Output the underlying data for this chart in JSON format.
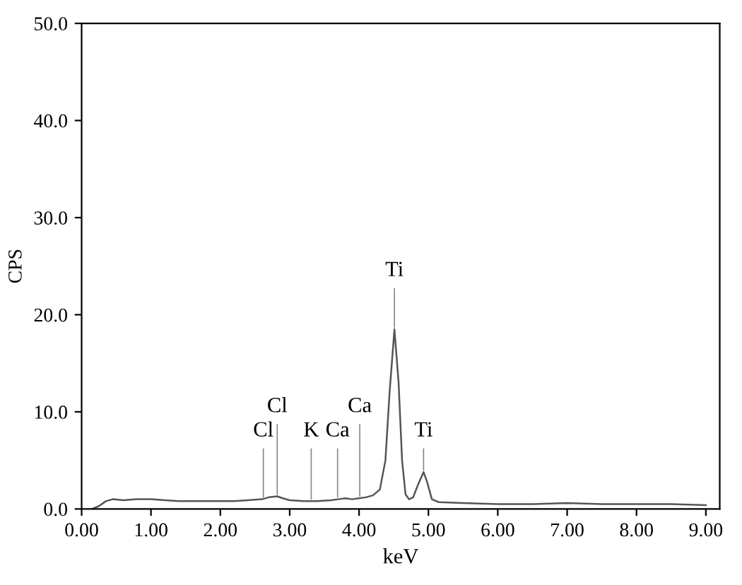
{
  "chart_data": {
    "type": "line",
    "xlabel": "keV",
    "ylabel": "CPS",
    "x": [
      0.15,
      0.25,
      0.35,
      0.45,
      0.6,
      0.8,
      1.0,
      1.2,
      1.4,
      1.6,
      1.8,
      2.0,
      2.2,
      2.4,
      2.6,
      2.7,
      2.82,
      2.9,
      3.0,
      3.2,
      3.4,
      3.6,
      3.7,
      3.8,
      3.9,
      4.0,
      4.1,
      4.2,
      4.3,
      4.38,
      4.44,
      4.51,
      4.57,
      4.62,
      4.67,
      4.72,
      4.78,
      4.85,
      4.93,
      4.98,
      5.05,
      5.15,
      5.5,
      6.0,
      6.5,
      7.0,
      7.5,
      8.0,
      8.5,
      9.0
    ],
    "series": [
      {
        "color": "#555555",
        "values": [
          0,
          0.3,
          0.8,
          1.0,
          0.9,
          1.0,
          1.0,
          0.9,
          0.8,
          0.8,
          0.8,
          0.8,
          0.8,
          0.9,
          1.0,
          1.2,
          1.3,
          1.1,
          0.9,
          0.8,
          0.8,
          0.9,
          1.0,
          1.1,
          1.0,
          1.1,
          1.2,
          1.4,
          2.0,
          5,
          12,
          18.5,
          13,
          5,
          1.5,
          1.0,
          1.2,
          2.5,
          3.8,
          2.8,
          1.0,
          0.7,
          0.6,
          0.5,
          0.5,
          0.6,
          0.5,
          0.5,
          0.5,
          0.4
        ]
      }
    ],
    "xlim": [
      0,
      9.2
    ],
    "ylim": [
      0,
      50
    ],
    "xticks": [
      {
        "value": 0,
        "label": "0.00"
      },
      {
        "value": 1,
        "label": "1.00"
      },
      {
        "value": 2,
        "label": "2.00"
      },
      {
        "value": 3,
        "label": "3.00"
      },
      {
        "value": 4,
        "label": "4.00"
      },
      {
        "value": 5,
        "label": "5.00"
      },
      {
        "value": 6,
        "label": "6.00"
      },
      {
        "value": 7,
        "label": "7.00"
      },
      {
        "value": 8,
        "label": "8.00"
      },
      {
        "value": 9,
        "label": "9.00"
      }
    ],
    "yticks": [
      {
        "value": 0,
        "label": "0.0"
      },
      {
        "value": 10,
        "label": "10.0"
      },
      {
        "value": 20,
        "label": "20.0"
      },
      {
        "value": 30,
        "label": "30.0"
      },
      {
        "value": 40,
        "label": "40.0"
      },
      {
        "value": 50,
        "label": "50.0"
      }
    ],
    "annotations": [
      {
        "text": "Cl",
        "x": 2.62,
        "y": 1.0
      },
      {
        "text": "Cl",
        "x": 2.82,
        "y": 1.3
      },
      {
        "text": "K",
        "x": 3.31,
        "y": 0.8
      },
      {
        "text": "Ca",
        "x": 3.69,
        "y": 1.0
      },
      {
        "text": "Ca",
        "x": 4.01,
        "y": 1.1
      },
      {
        "text": "Ti",
        "x": 4.51,
        "y": 18.5
      },
      {
        "text": "Ti",
        "x": 4.93,
        "y": 3.8
      }
    ]
  }
}
